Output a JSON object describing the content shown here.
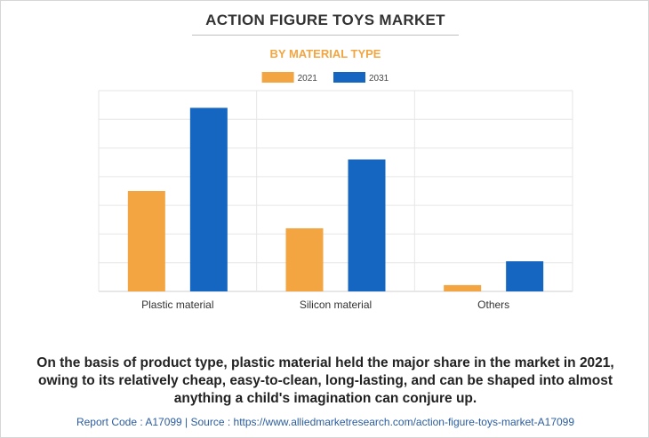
{
  "title": "ACTION FIGURE TOYS MARKET",
  "subtitle": "BY MATERIAL TYPE",
  "chart_data": {
    "type": "bar",
    "categories": [
      "Plastic material",
      "Silicon material",
      "Others"
    ],
    "series": [
      {
        "name": "2021",
        "values": [
          3.5,
          2.2,
          0.22
        ],
        "color": "#f2a541"
      },
      {
        "name": "2031",
        "values": [
          6.4,
          4.6,
          1.05
        ],
        "color": "#1566c0"
      }
    ],
    "ylim": [
      0,
      7
    ],
    "y_gridlines": 7,
    "y_tick_labels_shown": false,
    "grid": true,
    "legend_position": "top-center",
    "xlabel": "",
    "ylabel": ""
  },
  "caption": "On the basis of product type, plastic material held the major share in the market in 2021, owing to its relatively cheap, easy-to-clean, long-lasting, and can be shaped into almost anything a child's imagination can conjure up.",
  "footer": "Report Code : A17099  |  Source : https://www.alliedmarketresearch.com/action-figure-toys-market-A17099"
}
